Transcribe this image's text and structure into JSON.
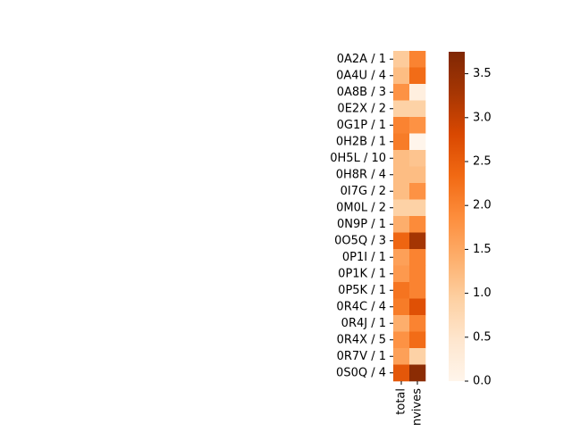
{
  "chart_data": {
    "type": "heatmap",
    "rows": [
      "0A2A / 1",
      "0A4U / 4",
      "0A8B / 3",
      "0E2X / 2",
      "0G1P / 1",
      "0H2B / 1",
      "0H5L / 10",
      "0H8R / 4",
      "0I7G / 2",
      "0M0L / 2",
      "0N9P / 1",
      "0O5Q / 3",
      "0P1I / 1",
      "0P1K / 1",
      "0P5K / 1",
      "0R4C / 4",
      "0R4J / 1",
      "0R4X / 5",
      "0R7V / 1",
      "0S0Q / 4"
    ],
    "columns": [
      "total",
      "survives"
    ],
    "columns_displayed": [
      "total",
      "nvives"
    ],
    "values": [
      [
        1.0,
        2.0
      ],
      [
        1.2,
        2.3
      ],
      [
        1.8,
        0.2
      ],
      [
        0.9,
        0.9
      ],
      [
        2.0,
        1.8
      ],
      [
        2.1,
        0.0
      ],
      [
        1.2,
        1.1
      ],
      [
        1.2,
        1.2
      ],
      [
        1.2,
        1.8
      ],
      [
        0.9,
        0.9
      ],
      [
        1.4,
        1.9
      ],
      [
        2.4,
        3.3
      ],
      [
        1.6,
        2.0
      ],
      [
        1.7,
        2.0
      ],
      [
        2.2,
        2.0
      ],
      [
        2.1,
        2.7
      ],
      [
        1.4,
        2.0
      ],
      [
        1.8,
        2.3
      ],
      [
        1.6,
        0.9
      ],
      [
        2.6,
        3.6
      ]
    ],
    "colormap": "Oranges",
    "vmin": 0.0,
    "vmax": 3.75,
    "colorbar_ticks": [
      "0.0",
      "0.5",
      "1.0",
      "1.5",
      "2.0",
      "2.5",
      "3.0",
      "3.5"
    ]
  }
}
